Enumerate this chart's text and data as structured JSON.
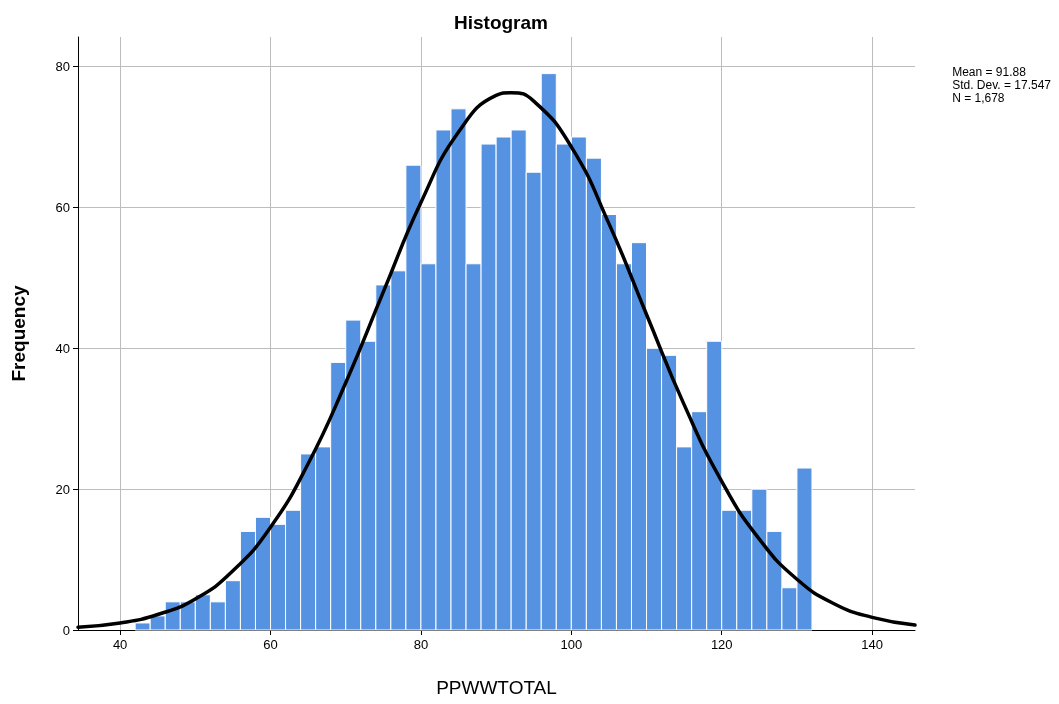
{
  "chart_data": {
    "type": "histogram",
    "title": "Histogram",
    "xlabel": "PPWWTOTAL",
    "ylabel": "Frequency",
    "bins": [
      42,
      44,
      46,
      48,
      50,
      52,
      54,
      56,
      58,
      60,
      62,
      64,
      66,
      68,
      70,
      72,
      74,
      76,
      78,
      80,
      82,
      84,
      86,
      88,
      90,
      92,
      94,
      96,
      98,
      100,
      102,
      104,
      106,
      108,
      110,
      112,
      114,
      116,
      118,
      120,
      122,
      124,
      126,
      128,
      130,
      132
    ],
    "values": [
      1,
      2,
      4,
      4,
      5,
      4,
      7,
      14,
      16,
      15,
      17,
      25,
      26,
      38,
      44,
      41,
      49,
      51,
      66,
      52,
      71,
      74,
      52,
      69,
      70,
      71,
      65,
      79,
      69,
      70,
      67,
      59,
      52,
      55,
      40,
      39,
      26,
      31,
      41,
      17,
      17,
      20,
      14,
      6,
      23
    ],
    "color": "#5593e2",
    "series": [
      {
        "type": "line",
        "color": "#000000",
        "x": [
          34.4,
          40,
          45,
          50,
          55,
          60,
          65,
          70,
          75,
          80,
          85,
          90,
          92,
          95,
          100,
          105,
          110,
          115,
          120,
          125,
          130,
          135,
          140,
          145.7
        ],
        "values": [
          0.4,
          1,
          2.2,
          4.4,
          8.4,
          14.6,
          23.6,
          35.1,
          48,
          60.7,
          70.7,
          75.9,
          76.3,
          75.1,
          68.6,
          57.7,
          44.8,
          32,
          21.1,
          12.9,
          7.2,
          3.7,
          1.8,
          0.7
        ]
      }
    ],
    "marker": "none",
    "line_style": "solid",
    "xlim": [
      34.4,
      145.7
    ],
    "xticks": [
      40,
      60,
      80,
      100,
      120,
      140
    ],
    "ylim": [
      0,
      84.2
    ],
    "yticks": [
      0,
      20,
      40,
      60,
      80
    ],
    "grid": true,
    "annotations": [
      "Mean = 91.88\nStd. Dev. = 17.547\nN = 1,678"
    ]
  }
}
